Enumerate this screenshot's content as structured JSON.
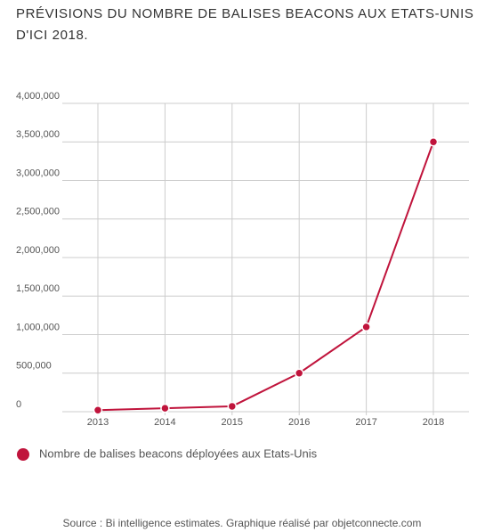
{
  "chart_data": {
    "type": "line",
    "title": "PRÉVISIONS DU NOMBRE DE BALISES BEACONS AUX ETATS-UNIS D'ICI 2018.",
    "categories": [
      "2013",
      "2014",
      "2015",
      "2016",
      "2017",
      "2018"
    ],
    "series": [
      {
        "name": "Nombre de balises beacons déployées aux Etats-Unis",
        "color": "#c0143c",
        "values": [
          20000,
          45000,
          70000,
          500000,
          1100000,
          3500000
        ]
      }
    ],
    "ylim": [
      0,
      4000000
    ],
    "yticks": [
      0,
      {
        "value": 500000,
        "label": "500,000"
      },
      {
        "value": 1000000,
        "label": "1,000,000"
      },
      {
        "value": 1500000,
        "label": "1,500,000"
      },
      {
        "value": 2000000,
        "label": "2,000,000"
      },
      {
        "value": 2500000,
        "label": "2,500,000"
      },
      {
        "value": 3000000,
        "label": "3,000,000"
      },
      {
        "value": 3500000,
        "label": "3,500,000"
      },
      {
        "value": 4000000,
        "label": "4,000,000"
      }
    ],
    "grid": true,
    "source": "Source : Bi intelligence estimates. Graphique réalisé par objetconnecte.com"
  }
}
